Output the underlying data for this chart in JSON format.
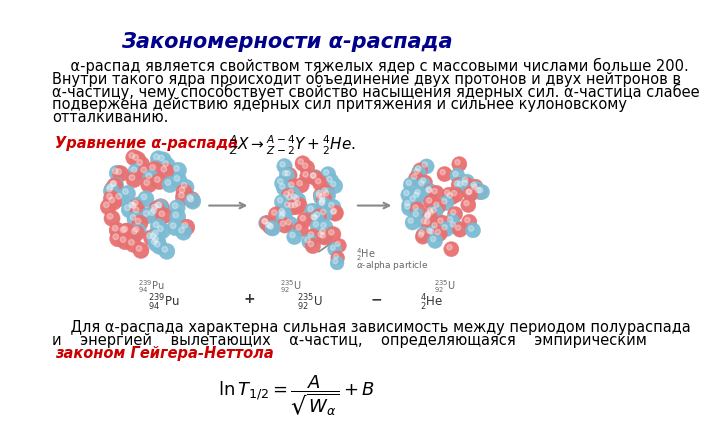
{
  "title": "Закономерности α-распада",
  "title_color": "#00008B",
  "title_fontsize": 15,
  "body_text_1a": "    α-распад является свойством тяжелых ядер с массовыми числами больше 200.",
  "body_text_1b": "Внутри такого ядра происходит объединение двух протонов и двух нейтронов в",
  "body_text_1c": "α-частицу, чему способствует свойство насыщения ядерных сил. α-частица слабее",
  "body_text_1d": "подвержена действию ядерных сил притяжения и сильнее кулоновскому",
  "body_text_1e": "отталкиванию.",
  "label_equation": "Уравнение α-распада",
  "label_equation_color": "#CC0000",
  "body_text_2a": "    Для α-распада характерна сильная зависимость между периодом полураспада",
  "body_text_2b": "и    энергией    вылетающих    α-частиц,    определяющаяся    эмпирическим",
  "geiger_label": "законом Гейгера-Неттола",
  "geiger_color": "#CC0000",
  "bg_color": "#FFFFFF",
  "text_color": "#000000",
  "text_fontsize": 10.5,
  "nucleus1_label": "$^{239}_{94}$Pu",
  "nucleus2_label": "$^{235}_{92}$U",
  "nucleus3_label": "$^{235}_{92}$U",
  "alpha_label": "$^{4}_{2}$He",
  "alpha_sublabel": "alpha particle",
  "row_label1": "$^{239}_{94}$Pu",
  "row_sep1": "+",
  "row_label2": "$^{235}_{92}$U",
  "row_sep2": "-",
  "row_label3": "$^{4}_{2}$He"
}
